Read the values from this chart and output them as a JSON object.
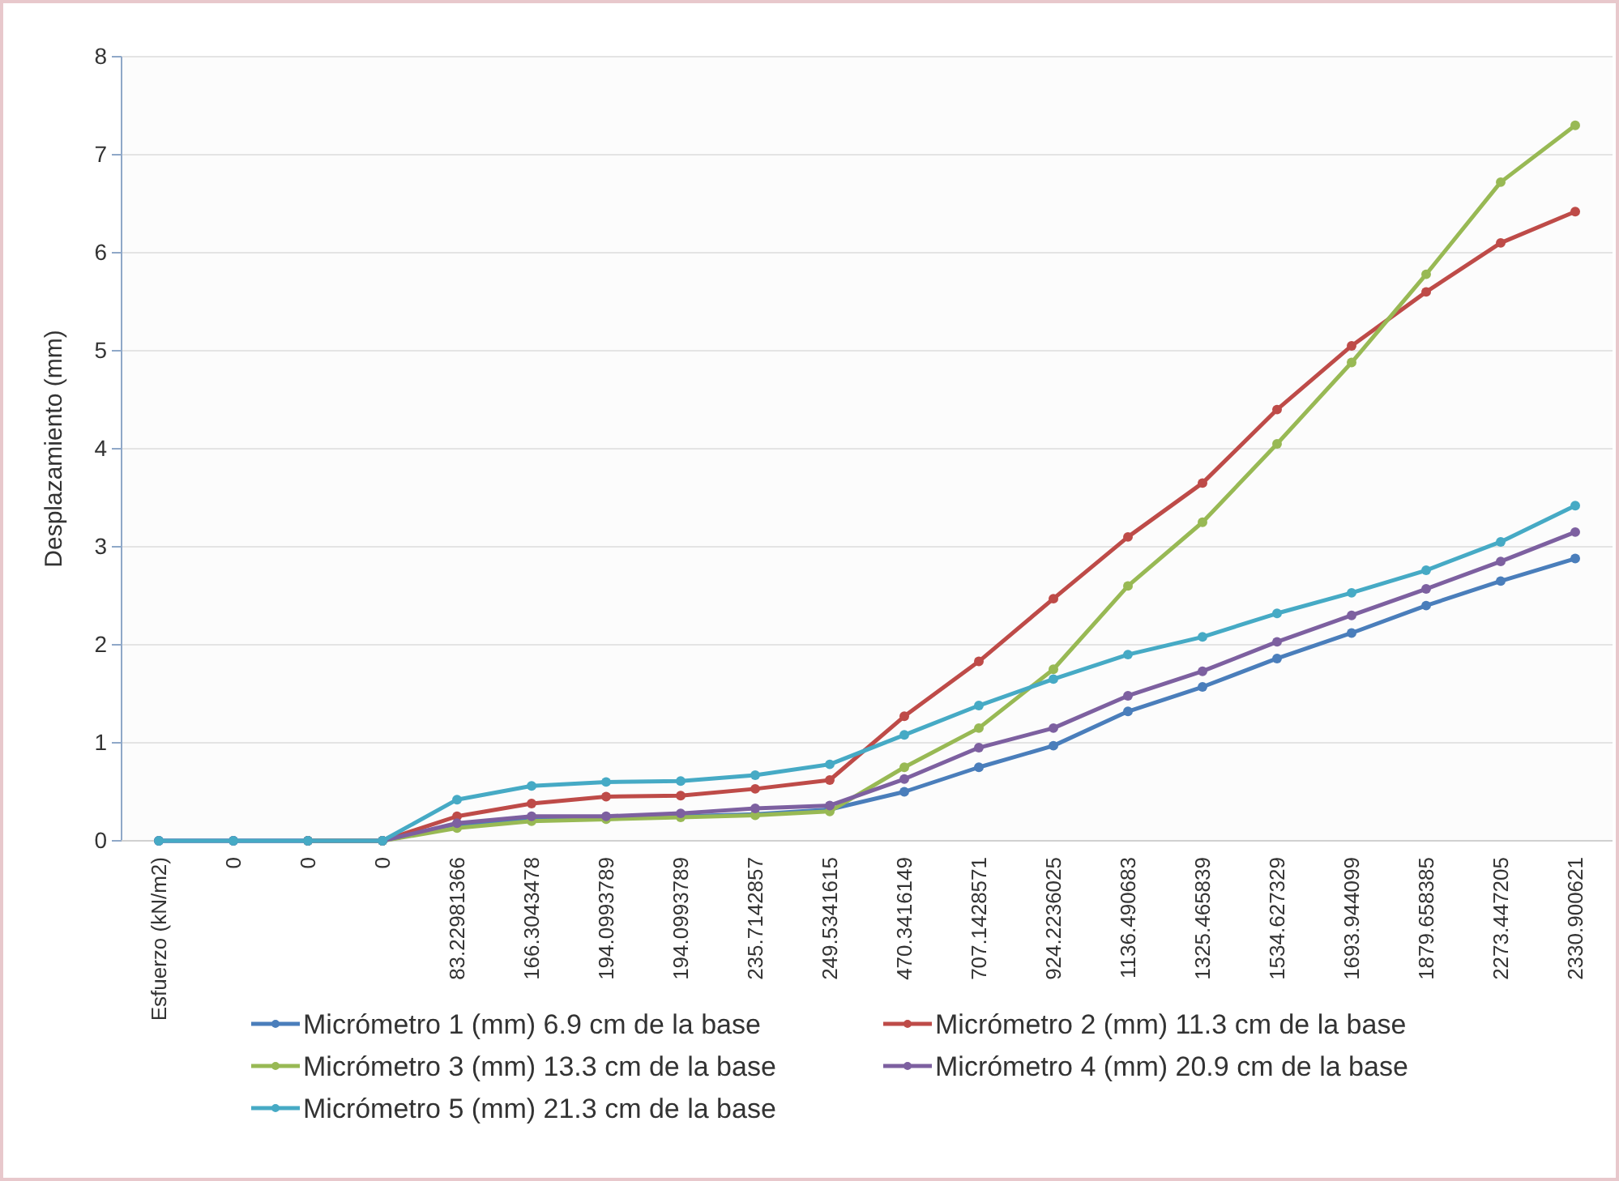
{
  "chart_data": {
    "type": "line",
    "ylabel": "Desplazamiento (mm)",
    "categories": [
      "Esfuerzo (kN/m2)",
      "0",
      "0",
      "0",
      "83.22981366",
      "166.3043478",
      "194.0993789",
      "194.0993789",
      "235.7142857",
      "249.5341615",
      "470.3416149",
      "707.1428571",
      "924.2236025",
      "1136.490683",
      "1325.465839",
      "1534.627329",
      "1693.944099",
      "1879.658385",
      "2273.447205",
      "2330.900621"
    ],
    "ylim": [
      0,
      8
    ],
    "yticks": [
      0,
      1,
      2,
      3,
      4,
      5,
      6,
      7,
      8
    ],
    "grid": "y",
    "legend": "bottom",
    "marker": "circle",
    "series": [
      {
        "name": "Micrómetro 1 (mm) 6.9 cm de la base",
        "color": "#4a7ebb",
        "values": [
          0,
          0,
          0,
          0,
          0.15,
          0.22,
          0.24,
          0.25,
          0.27,
          0.32,
          0.5,
          0.75,
          0.97,
          1.32,
          1.57,
          1.86,
          2.12,
          2.4,
          2.65,
          2.88
        ]
      },
      {
        "name": "Micrómetro 2 (mm) 11.3 cm de la base",
        "color": "#be4b48",
        "values": [
          null,
          null,
          0,
          0,
          0.25,
          0.38,
          0.45,
          0.46,
          0.53,
          0.62,
          1.27,
          1.83,
          2.47,
          3.1,
          3.65,
          4.4,
          5.05,
          5.6,
          6.1,
          6.42
        ]
      },
      {
        "name": "Micrómetro 3 (mm) 13.3 cm de la base",
        "color": "#98b954",
        "values": [
          null,
          null,
          0,
          0,
          0.13,
          0.2,
          0.22,
          0.24,
          0.26,
          0.3,
          0.75,
          1.15,
          1.75,
          2.6,
          3.25,
          4.05,
          4.88,
          5.78,
          6.72,
          7.3
        ]
      },
      {
        "name": "Micrómetro 4 (mm) 20.9 cm de la base",
        "color": "#7d60a0",
        "values": [
          0,
          0,
          0,
          0,
          0.18,
          0.25,
          0.25,
          0.28,
          0.33,
          0.36,
          0.63,
          0.95,
          1.15,
          1.48,
          1.73,
          2.03,
          2.3,
          2.57,
          2.85,
          3.15
        ]
      },
      {
        "name": "Micrómetro 5 (mm) 21.3 cm de la base",
        "color": "#46aac5",
        "values": [
          0,
          0,
          0,
          0,
          0.42,
          0.56,
          0.6,
          0.61,
          0.67,
          0.78,
          1.08,
          1.38,
          1.65,
          1.9,
          2.08,
          2.32,
          2.53,
          2.76,
          3.05,
          3.42
        ]
      }
    ]
  }
}
